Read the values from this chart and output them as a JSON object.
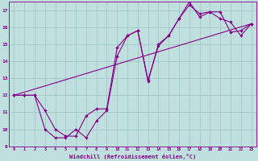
{
  "background_color": "#c0e0e0",
  "grid_color": "#a0c8c8",
  "line_color": "#880088",
  "xlim": [
    -0.5,
    23.5
  ],
  "ylim": [
    9,
    17.5
  ],
  "xticks": [
    0,
    1,
    2,
    3,
    4,
    5,
    6,
    7,
    8,
    9,
    10,
    11,
    12,
    13,
    14,
    15,
    16,
    17,
    18,
    19,
    20,
    21,
    22,
    23
  ],
  "yticks": [
    9,
    10,
    11,
    12,
    13,
    14,
    15,
    16,
    17
  ],
  "xlabel": "Windchill (Refroidissement éolien,°C)",
  "series1_x": [
    0,
    1,
    2,
    3,
    4,
    5,
    6,
    7,
    8,
    9,
    10,
    11,
    12,
    13,
    14,
    15,
    16,
    17,
    18,
    19,
    20,
    21,
    22,
    23
  ],
  "series1_y": [
    12.0,
    12.0,
    12.0,
    11.1,
    10.0,
    9.6,
    9.6,
    10.8,
    11.2,
    11.2,
    14.8,
    15.5,
    15.8,
    12.9,
    14.9,
    15.5,
    16.5,
    17.5,
    16.6,
    16.9,
    16.9,
    15.7,
    15.8,
    16.2
  ],
  "series2_x": [
    0,
    1,
    2,
    3,
    4,
    5,
    6,
    7,
    8,
    9,
    10,
    11,
    12,
    13,
    14,
    15,
    16,
    17,
    18,
    19,
    20,
    21,
    22,
    23
  ],
  "series2_y": [
    12.0,
    12.0,
    12.0,
    10.0,
    9.5,
    9.5,
    10.0,
    9.5,
    10.5,
    11.1,
    14.3,
    15.5,
    15.8,
    12.8,
    15.0,
    15.5,
    16.5,
    17.3,
    16.8,
    16.9,
    16.5,
    16.3,
    15.5,
    16.2
  ],
  "series3_x": [
    0,
    23
  ],
  "series3_y": [
    12.0,
    16.2
  ],
  "marker_size": 1.8,
  "line_width": 0.8
}
